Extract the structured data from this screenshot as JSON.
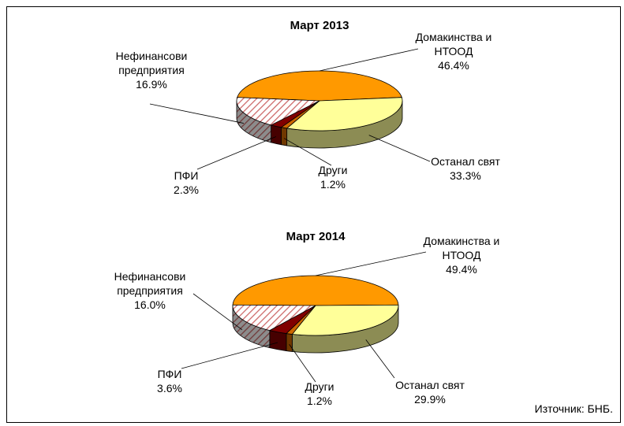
{
  "chart_data": [
    {
      "type": "pie",
      "title": "Март 2013",
      "categories": [
        "Домакинства и НТООД",
        "Останал свят",
        "Други",
        "ПФИ",
        "Нефинансови предприятия"
      ],
      "values": [
        46.4,
        33.3,
        1.2,
        2.3,
        16.9
      ],
      "value_labels": [
        "46.4%",
        "33.3%",
        "1.2%",
        "2.3%",
        "16.9%"
      ],
      "colors": [
        "#ff9900",
        "#ffff99",
        "#cc6600",
        "#800000",
        "#cc6666"
      ],
      "hatched": [
        false,
        false,
        false,
        false,
        true
      ]
    },
    {
      "type": "pie",
      "title": "Март 2014",
      "categories": [
        "Домакинства и НТООД",
        "Останал свят",
        "Други",
        "ПФИ",
        "Нефинансови предприятия"
      ],
      "values": [
        49.4,
        29.9,
        1.2,
        3.6,
        16.0
      ],
      "value_labels": [
        "49.4%",
        "29.9%",
        "1.2%",
        "3.6%",
        "16.0%"
      ],
      "colors": [
        "#ff9900",
        "#ffff99",
        "#cc6600",
        "#800000",
        "#cc6666"
      ],
      "hatched": [
        false,
        false,
        false,
        false,
        true
      ]
    }
  ],
  "source": "Източник: БНБ."
}
